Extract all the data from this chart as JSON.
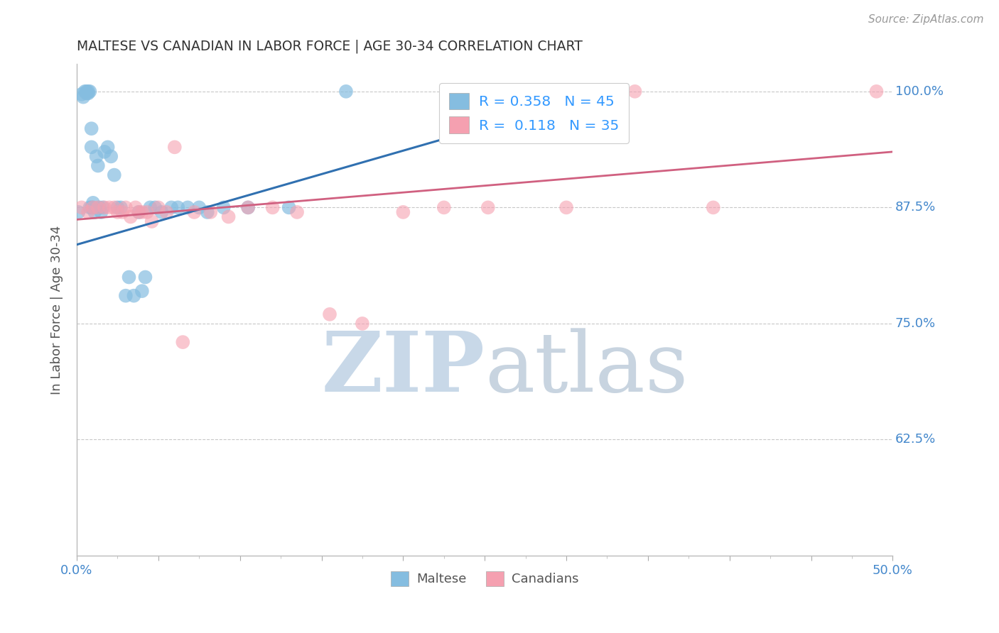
{
  "title": "MALTESE VS CANADIAN IN LABOR FORCE | AGE 30-34 CORRELATION CHART",
  "source": "Source: ZipAtlas.com",
  "ylabel": "In Labor Force | Age 30-34",
  "xlim": [
    0.0,
    0.5
  ],
  "ylim": [
    0.5,
    1.03
  ],
  "ytick_positions": [
    0.625,
    0.75,
    0.875,
    1.0
  ],
  "ytick_labels": [
    "62.5%",
    "75.0%",
    "87.5%",
    "100.0%"
  ],
  "blue_R": 0.358,
  "blue_N": 45,
  "pink_R": 0.118,
  "pink_N": 35,
  "blue_color": "#85bde0",
  "pink_color": "#f5a0b0",
  "blue_line_color": "#3070b0",
  "pink_line_color": "#d06080",
  "grid_color": "#c8c8c8",
  "background_color": "#ffffff",
  "title_color": "#333333",
  "axis_label_color": "#555555",
  "tick_label_color": "#4488cc",
  "source_color": "#999999",
  "watermark_zip_color": "#c8d8e8",
  "watermark_atlas_color": "#c8d4e0",
  "legend_number_color": "#3399ff",
  "legend_text_color": "#333333",
  "blue_x": [
    0.001,
    0.003,
    0.004,
    0.005,
    0.006,
    0.006,
    0.007,
    0.007,
    0.008,
    0.008,
    0.009,
    0.009,
    0.009,
    0.01,
    0.01,
    0.011,
    0.012,
    0.013,
    0.014,
    0.015,
    0.016,
    0.017,
    0.019,
    0.021,
    0.023,
    0.025,
    0.027,
    0.03,
    0.032,
    0.035,
    0.038,
    0.04,
    0.042,
    0.045,
    0.048,
    0.052,
    0.058,
    0.062,
    0.068,
    0.075,
    0.08,
    0.09,
    0.105,
    0.13,
    0.165
  ],
  "blue_y": [
    0.87,
    0.997,
    0.994,
    1.0,
    1.0,
    0.998,
    1.0,
    0.998,
    1.0,
    0.875,
    0.96,
    0.94,
    0.875,
    0.875,
    0.88,
    0.87,
    0.93,
    0.92,
    0.875,
    0.87,
    0.875,
    0.935,
    0.94,
    0.93,
    0.91,
    0.875,
    0.875,
    0.78,
    0.8,
    0.78,
    0.87,
    0.785,
    0.8,
    0.875,
    0.875,
    0.87,
    0.875,
    0.875,
    0.875,
    0.875,
    0.87,
    0.875,
    0.875,
    0.875,
    1.0
  ],
  "pink_x": [
    0.003,
    0.007,
    0.01,
    0.013,
    0.017,
    0.02,
    0.023,
    0.025,
    0.028,
    0.03,
    0.033,
    0.036,
    0.038,
    0.04,
    0.043,
    0.046,
    0.05,
    0.055,
    0.06,
    0.065,
    0.072,
    0.082,
    0.093,
    0.105,
    0.12,
    0.135,
    0.155,
    0.175,
    0.2,
    0.225,
    0.252,
    0.3,
    0.342,
    0.39,
    0.49
  ],
  "pink_y": [
    0.875,
    0.87,
    0.875,
    0.875,
    0.875,
    0.875,
    0.875,
    0.87,
    0.87,
    0.875,
    0.865,
    0.875,
    0.87,
    0.87,
    0.87,
    0.86,
    0.875,
    0.87,
    0.94,
    0.73,
    0.87,
    0.87,
    0.865,
    0.875,
    0.875,
    0.87,
    0.76,
    0.75,
    0.87,
    0.875,
    0.875,
    0.875,
    1.0,
    0.875,
    1.0
  ],
  "blue_trend": [
    0.0,
    0.33,
    0.835,
    1.002
  ],
  "pink_trend": [
    0.0,
    0.5,
    0.862,
    0.935
  ],
  "xtick_major": [
    0.0,
    0.05,
    0.1,
    0.15,
    0.2,
    0.25,
    0.3,
    0.35,
    0.4,
    0.45,
    0.5
  ],
  "xtick_minor": [
    0.025,
    0.075,
    0.125,
    0.175,
    0.225,
    0.275,
    0.325,
    0.375,
    0.425,
    0.475
  ]
}
